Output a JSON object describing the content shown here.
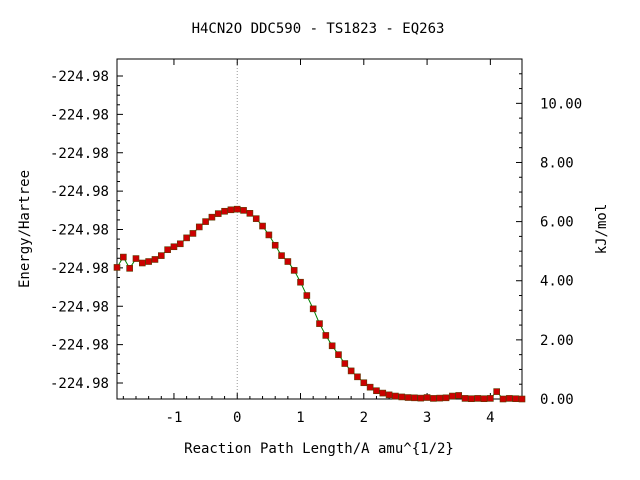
{
  "chart_data": {
    "type": "line",
    "title": "H4CN2O   DDC590 - TS1823 - EQ263",
    "xlabel": "Reaction Path Length/A amu^{1/2}",
    "ylabel": "Energy/Hartree",
    "y2label": "kJ/mol",
    "xlim": [
      -1.9,
      4.5
    ],
    "x_ticks": [
      -1,
      0,
      1,
      2,
      3,
      4
    ],
    "x_tick_labels": [
      "-1",
      "0",
      "1",
      "2",
      "3",
      "4"
    ],
    "y_ticks_left": [
      1,
      2,
      3,
      4,
      5,
      6,
      7,
      8,
      9
    ],
    "y_tick_labels_left": [
      "-224.98",
      "-224.98",
      "-224.98",
      "-224.98",
      "-224.98",
      "-224.98",
      "-224.98",
      "-224.98",
      "-224.98"
    ],
    "ylim_kjmol": [
      0,
      11.5
    ],
    "y_ticks_right": [
      0,
      2,
      4,
      6,
      8,
      10
    ],
    "y_tick_labels_right": [
      "0.00",
      "2.00",
      "4.00",
      "6.00",
      "8.00",
      "10.00"
    ],
    "ts_marker_x": 0,
    "grid": false,
    "legend": "none",
    "colors": {
      "line": "#008000",
      "marker": "#cc0000",
      "ts_line": "#999999"
    },
    "series": [
      {
        "x": [
          -1.9,
          -1.8,
          -1.7,
          -1.6,
          -1.5,
          -1.4,
          -1.3,
          -1.2,
          -1.1,
          -1.0,
          -0.9,
          -0.8,
          -0.7,
          -0.6,
          -0.5,
          -0.4,
          -0.3,
          -0.2,
          -0.1,
          0.0,
          0.1,
          0.2,
          0.3,
          0.4,
          0.5,
          0.6,
          0.7,
          0.8,
          0.9,
          1.0,
          1.1,
          1.2,
          1.3,
          1.4,
          1.5,
          1.6,
          1.7,
          1.8,
          1.9,
          2.0,
          2.1,
          2.2,
          2.3,
          2.4,
          2.5,
          2.6,
          2.7,
          2.8,
          2.9,
          3.0,
          3.1,
          3.2,
          3.3,
          3.4,
          3.5,
          3.6,
          3.7,
          3.8,
          3.9,
          4.0,
          4.1,
          4.2,
          4.3,
          4.4,
          4.5
        ],
        "values": [
          4.45,
          4.8,
          4.42,
          4.75,
          4.6,
          4.65,
          4.72,
          4.85,
          5.05,
          5.15,
          5.25,
          5.45,
          5.6,
          5.82,
          6.0,
          6.15,
          6.27,
          6.35,
          6.4,
          6.42,
          6.38,
          6.28,
          6.1,
          5.85,
          5.55,
          5.2,
          4.85,
          4.65,
          4.35,
          3.95,
          3.5,
          3.05,
          2.55,
          2.15,
          1.8,
          1.5,
          1.2,
          0.95,
          0.75,
          0.55,
          0.4,
          0.28,
          0.2,
          0.14,
          0.1,
          0.07,
          0.05,
          0.04,
          0.03,
          0.05,
          0.02,
          0.03,
          0.04,
          0.1,
          0.12,
          0.02,
          0.01,
          0.02,
          0.01,
          0.02,
          0.25,
          0.0,
          0.02,
          0.01,
          0.0
        ]
      }
    ]
  }
}
